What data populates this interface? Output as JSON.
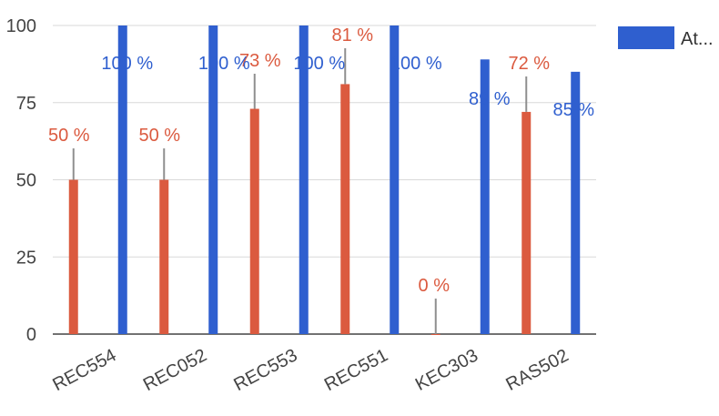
{
  "chart_data": {
    "type": "bar",
    "categories": [
      "REC554",
      "REC052",
      "REC553",
      "REC551",
      "KEC303",
      "RAS502"
    ],
    "series": [
      {
        "name": "",
        "color": "#db5a3f",
        "values": [
          50,
          50,
          73,
          81,
          0,
          72
        ],
        "labels": [
          "50 %",
          "50 %",
          "73 %",
          "81 %",
          "0 %",
          "72 %"
        ]
      },
      {
        "name": "At...",
        "color": "#2f5fcf",
        "values": [
          100,
          100,
          100,
          100,
          89,
          85
        ],
        "labels": [
          "100 %",
          "100 %",
          "100 %",
          "100 %",
          "89 %",
          "85 %"
        ]
      }
    ],
    "ylim": [
      0,
      100
    ],
    "yticks": [
      0,
      25,
      50,
      75,
      100
    ],
    "ytick_labels": [
      "0",
      "25",
      "50",
      "75",
      "100"
    ],
    "grid": true,
    "legend": {
      "placement": "right",
      "entries": [
        "At..."
      ]
    },
    "title": "",
    "xlabel": "",
    "ylabel": ""
  }
}
